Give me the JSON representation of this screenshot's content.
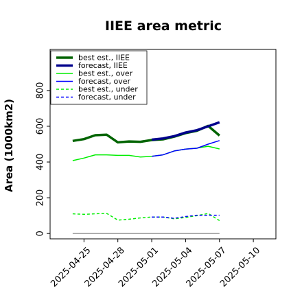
{
  "chart_data": {
    "type": "line",
    "title": "IIEE area metric",
    "xlabel": "",
    "ylabel": "Area (1000km2)",
    "xlim": [
      "2025-04-22",
      "2025-05-12"
    ],
    "ylim": [
      -30,
      1030
    ],
    "yticks": [
      0,
      200,
      400,
      600,
      800
    ],
    "xticks": [
      "2025-04-25",
      "2025-04-28",
      "2025-05-01",
      "2025-05-04",
      "2025-05-07",
      "2025-05-10"
    ],
    "highlighted_xtick": "2025-05-01",
    "highlight_color": "#228b22",
    "grid": false,
    "legend_position": "upper-left",
    "zero_line_color": "#808080",
    "series": [
      {
        "name": "best est., IIEE",
        "color": "#006400",
        "style": "solid",
        "width": 3.5,
        "x": [
          "2025-04-24",
          "2025-04-25",
          "2025-04-26",
          "2025-04-27",
          "2025-04-28",
          "2025-04-29",
          "2025-04-30",
          "2025-05-01",
          "2025-05-02",
          "2025-05-03",
          "2025-05-04",
          "2025-05-05",
          "2025-05-06",
          "2025-05-07"
        ],
        "y": [
          518,
          528,
          550,
          553,
          510,
          515,
          513,
          523,
          527,
          542,
          562,
          575,
          602,
          548
        ]
      },
      {
        "name": "forecast, IIEE",
        "color": "#00008b",
        "style": "solid",
        "width": 3.5,
        "x": [
          "2025-05-01",
          "2025-05-02",
          "2025-05-03",
          "2025-05-04",
          "2025-05-05",
          "2025-05-06",
          "2025-05-07"
        ],
        "y": [
          525,
          532,
          545,
          565,
          578,
          600,
          622
        ]
      },
      {
        "name": "best est., over",
        "color": "#00ee00",
        "style": "solid",
        "width": 1.5,
        "x": [
          "2025-04-24",
          "2025-04-25",
          "2025-04-26",
          "2025-04-27",
          "2025-04-28",
          "2025-04-29",
          "2025-04-30",
          "2025-05-01",
          "2025-05-02",
          "2025-05-03",
          "2025-05-04",
          "2025-05-05",
          "2025-05-06",
          "2025-05-07"
        ],
        "y": [
          408,
          422,
          440,
          440,
          437,
          437,
          428,
          432,
          440,
          462,
          472,
          478,
          488,
          473
        ]
      },
      {
        "name": "forecast, over",
        "color": "#0000ff",
        "style": "solid",
        "width": 1.5,
        "x": [
          "2025-05-01",
          "2025-05-02",
          "2025-05-03",
          "2025-05-04",
          "2025-05-05",
          "2025-05-06",
          "2025-05-07"
        ],
        "y": [
          432,
          440,
          462,
          472,
          477,
          500,
          520
        ]
      },
      {
        "name": "best est., under",
        "color": "#00ee00",
        "style": "dashed",
        "width": 1.5,
        "x": [
          "2025-04-24",
          "2025-04-25",
          "2025-04-26",
          "2025-04-27",
          "2025-04-28",
          "2025-04-29",
          "2025-04-30",
          "2025-05-01",
          "2025-05-02",
          "2025-05-03",
          "2025-05-04",
          "2025-05-05",
          "2025-05-06",
          "2025-05-07"
        ],
        "y": [
          110,
          107,
          110,
          113,
          75,
          80,
          87,
          92,
          92,
          82,
          90,
          100,
          112,
          72
        ]
      },
      {
        "name": "forecast, under",
        "color": "#0000ff",
        "style": "dashed",
        "width": 1.5,
        "x": [
          "2025-05-01",
          "2025-05-02",
          "2025-05-03",
          "2025-05-04",
          "2025-05-05",
          "2025-05-06",
          "2025-05-07"
        ],
        "y": [
          92,
          92,
          85,
          95,
          102,
          102,
          102
        ]
      },
      {
        "name": "",
        "color": "#808080",
        "style": "solid",
        "width": 1.2,
        "x": [
          "2025-04-24",
          "2025-05-07"
        ],
        "y": [
          0,
          0
        ]
      }
    ]
  }
}
